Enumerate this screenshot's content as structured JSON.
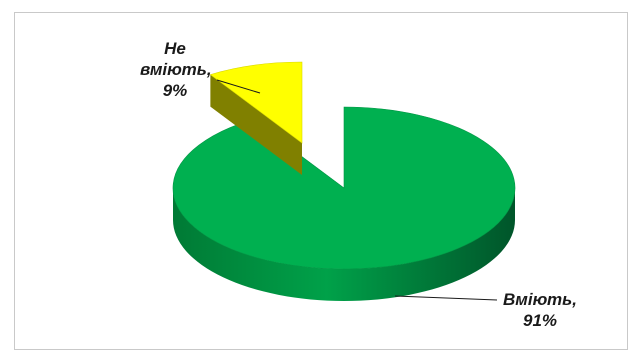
{
  "chart_data": {
    "type": "pie",
    "three_d": true,
    "title": "",
    "slices": [
      {
        "label": "Вміють",
        "value": 91,
        "value_text": "91%",
        "color": "#00b050"
      },
      {
        "label": "Не вміють",
        "value": 9,
        "value_text": "9%",
        "color": "#ffff00",
        "exploded": true
      }
    ]
  },
  "labels": {
    "no_line1": "Не",
    "no_line2": "вміють,",
    "no_line3": "9%",
    "yes_line1": "Вміють,",
    "yes_line2": "91%"
  }
}
